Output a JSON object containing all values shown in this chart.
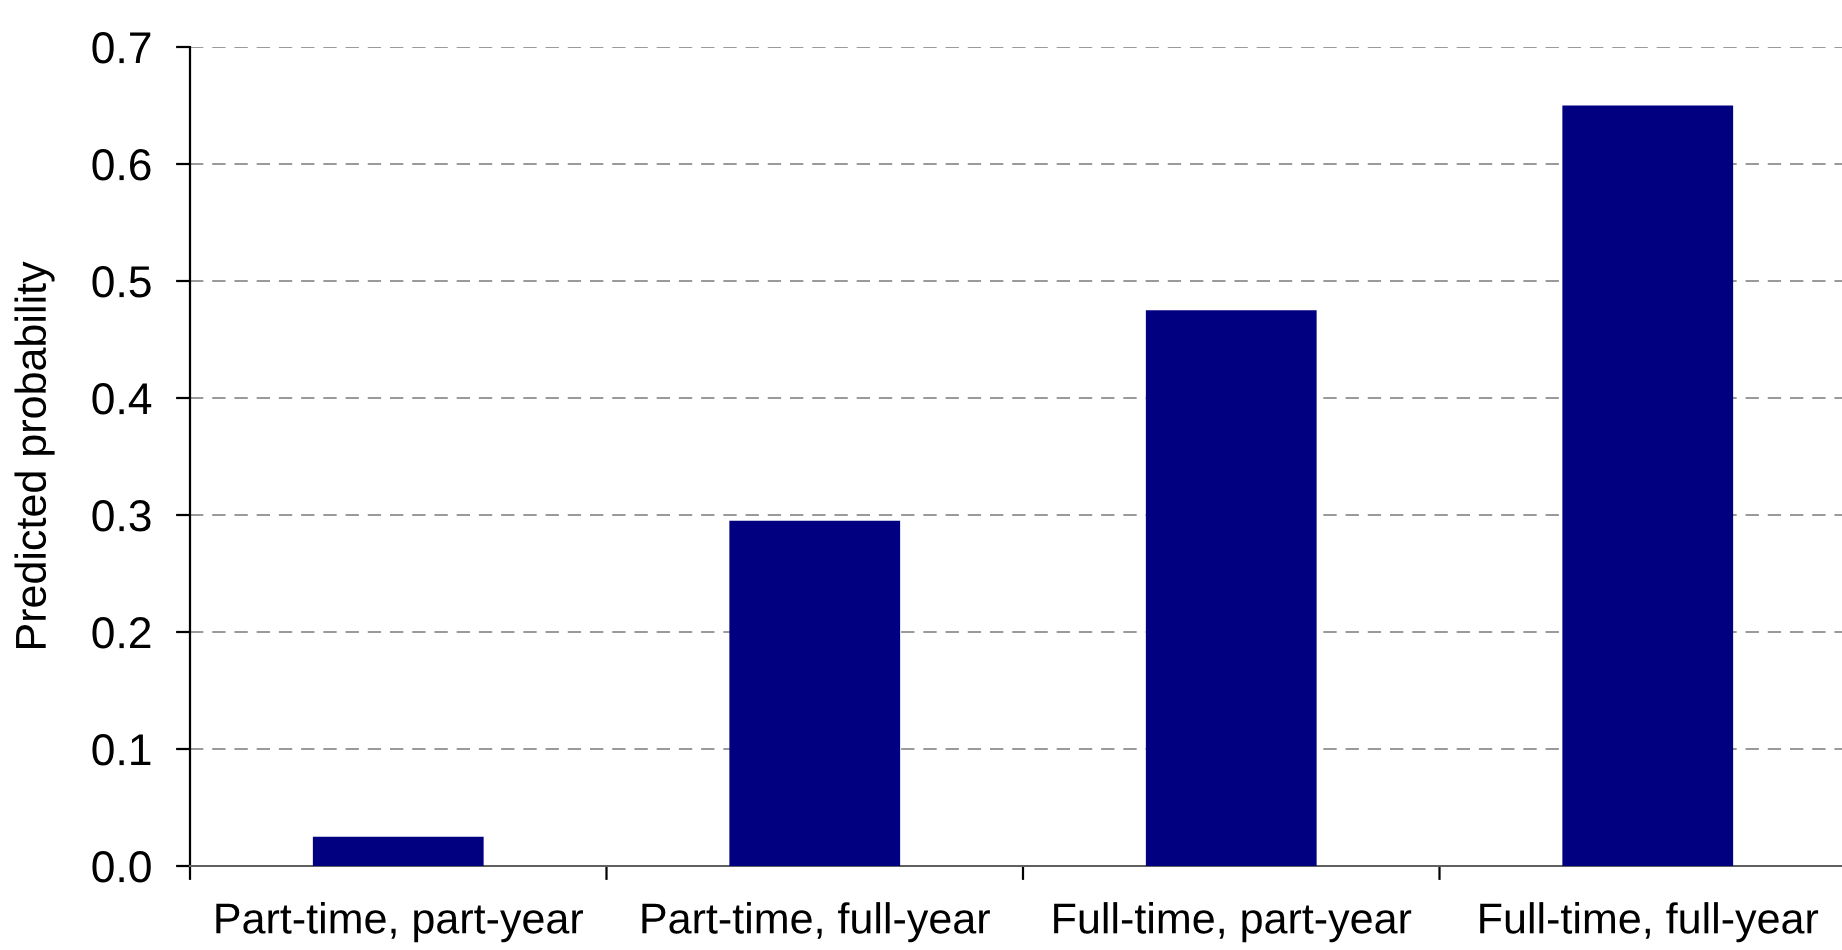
{
  "chart_data": {
    "type": "bar",
    "ylabel": "Predicted probability",
    "categories": [
      "Part-time, part-year",
      "Part-time, full-year",
      "Full-time, part-year",
      "Full-time, full-year"
    ],
    "values": [
      0.025,
      0.295,
      0.475,
      0.65
    ],
    "color": "#000080",
    "ylim": [
      0.0,
      0.7
    ],
    "yticks": [
      {
        "value": 0,
        "label": "0.0"
      },
      0.1,
      0.2,
      0.3,
      0.4,
      0.5,
      0.6,
      0.7
    ],
    "grid": "y"
  }
}
